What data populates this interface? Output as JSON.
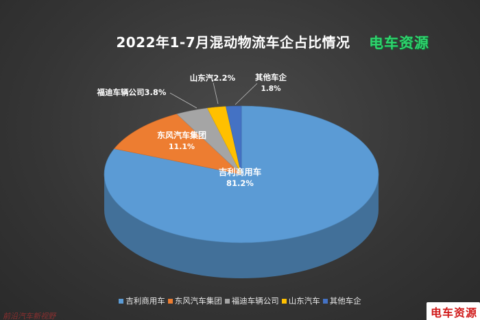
{
  "title": "2022年1-7月混动物流车企占比情况",
  "brand": "电车资源",
  "watermark": "前沿汽车新视野",
  "chart_data": {
    "type": "pie",
    "title": "2022年1-7月混动物流车企占比情况",
    "legend_position": "bottom",
    "slices": [
      {
        "name": "吉利商用车",
        "value": 81.2,
        "label": "81.2%",
        "color": "#5b9bd5"
      },
      {
        "name": "东风汽车集团",
        "value": 11.1,
        "label": "11.1%",
        "color": "#ed7d31"
      },
      {
        "name": "福迪车辆公司",
        "value": 3.8,
        "label": "3.8%",
        "color": "#a5a5a5"
      },
      {
        "name": "山东汽",
        "legend_name": "山东汽车",
        "value": 2.2,
        "label": "2.2%",
        "color": "#ffc000"
      },
      {
        "name": "其他车企",
        "value": 1.8,
        "label": "1.8%",
        "color": "#4472c4"
      }
    ]
  }
}
